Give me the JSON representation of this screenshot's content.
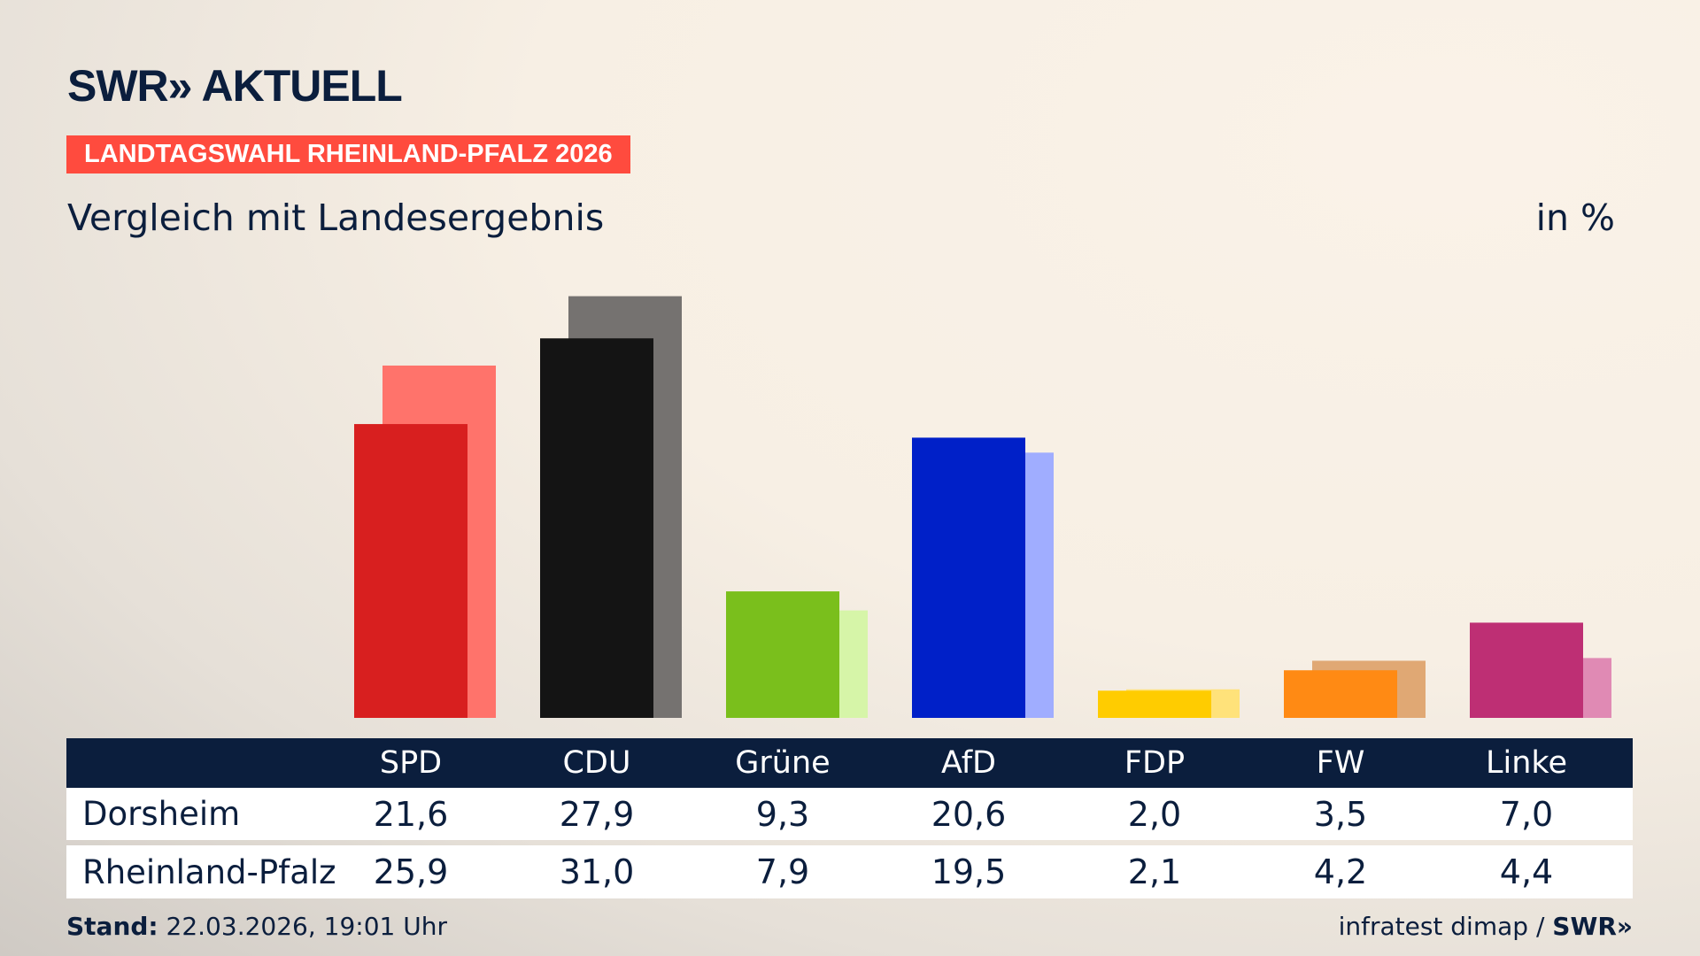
{
  "brand": {
    "logo": "SWR» AKTUELL",
    "footer_logo": "SWR»"
  },
  "badge": "LANDTAGSWAHL RHEINLAND-PFALZ 2026",
  "subtitle": "Vergleich mit Landesergebnis",
  "unit": "in %",
  "chart_data": {
    "type": "bar",
    "categories": [
      "SPD",
      "CDU",
      "Grüne",
      "AfD",
      "FDP",
      "FW",
      "Linke"
    ],
    "series": [
      {
        "name": "Dorsheim",
        "values": [
          21.6,
          27.9,
          9.3,
          20.6,
          2.0,
          3.5,
          7.0
        ],
        "colors": [
          "#d81f1f",
          "#141414",
          "#7abf1c",
          "#0020c8",
          "#ffcc00",
          "#ff8a14",
          "#be2f74"
        ]
      },
      {
        "name": "Rheinland-Pfalz",
        "values": [
          25.9,
          31.0,
          7.9,
          19.5,
          2.1,
          4.2,
          4.4
        ],
        "colors": [
          "#ff736b",
          "#757270",
          "#d6f5a8",
          "#a0adff",
          "#ffe27a",
          "#e0a874",
          "#e08ab4"
        ]
      }
    ],
    "grid": false
  },
  "table": {
    "headers": [
      "SPD",
      "CDU",
      "Grüne",
      "AfD",
      "FDP",
      "FW",
      "Linke"
    ],
    "rows": [
      {
        "label": "Dorsheim",
        "values": [
          "21,6",
          "27,9",
          "9,3",
          "20,6",
          "2,0",
          "3,5",
          "7,0"
        ]
      },
      {
        "label": "Rheinland-Pfalz",
        "values": [
          "25,9",
          "31,0",
          "7,9",
          "19,5",
          "2,1",
          "4,2",
          "4,4"
        ]
      }
    ]
  },
  "footer": {
    "stand_label": "Stand:",
    "stand_value": "22.03.2026, 19:01 Uhr",
    "source": "infratest dimap /"
  }
}
